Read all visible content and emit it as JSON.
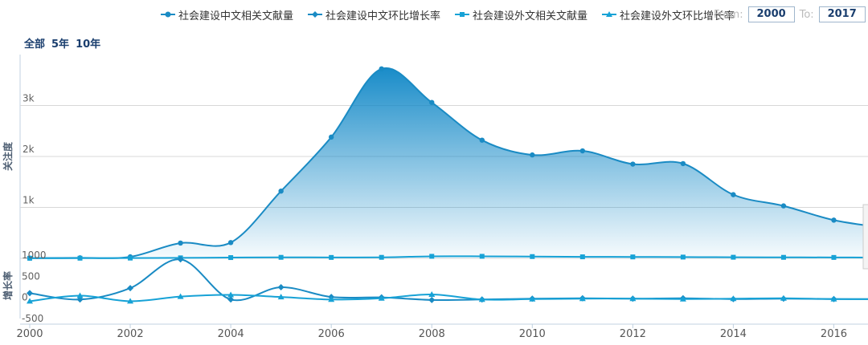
{
  "legend": {
    "items": [
      {
        "label": "社会建设中文相关文献量",
        "marker": "circle",
        "color": "#1a8bc4"
      },
      {
        "label": "社会建设中文环比增长率",
        "marker": "diamond",
        "color": "#1a8bc4"
      },
      {
        "label": "社会建设外文相关文献量",
        "marker": "square",
        "color": "#17a2d6"
      },
      {
        "label": "社会建设外文环比增长率",
        "marker": "triangle",
        "color": "#17a2d6"
      }
    ]
  },
  "range_selector": {
    "zoom_buttons": [
      "全部",
      "5年",
      "10年"
    ]
  },
  "date_range": {
    "from_label": "From:",
    "from_value": "2000",
    "to_label": "To:",
    "to_value": "2017"
  },
  "chart_data": {
    "type": "line",
    "x": [
      2000,
      2001,
      2002,
      2003,
      2004,
      2005,
      2006,
      2007,
      2008,
      2009,
      2010,
      2011,
      2012,
      2013,
      2014,
      2015,
      2016,
      2017
    ],
    "xtick_labels": [
      "2000",
      "2002",
      "2004",
      "2006",
      "2008",
      "2010",
      "2012",
      "2014",
      "2016"
    ],
    "panels": [
      {
        "ylabel": "关注度",
        "ylim": [
          0,
          4000
        ],
        "yticks": [
          "0",
          "1k",
          "2k",
          "3k"
        ],
        "grid": true,
        "series": [
          {
            "name": "社会建设中文相关文献量",
            "marker": "circle",
            "area": true,
            "color": "#1a8bc4",
            "values": [
              5,
              10,
              30,
              300,
              310,
              1320,
              2380,
              3720,
              3060,
              2320,
              2030,
              2110,
              1850,
              1860,
              1250,
              1030,
              750,
              600
            ]
          },
          {
            "name": "社会建设外文相关文献量",
            "marker": "square",
            "area": false,
            "color": "#17a2d6",
            "values": [
              2,
              3,
              5,
              10,
              15,
              20,
              18,
              20,
              40,
              40,
              35,
              30,
              28,
              25,
              22,
              20,
              18,
              15
            ]
          }
        ]
      },
      {
        "ylabel": "增长率",
        "ylim": [
          -500,
          1000
        ],
        "yticks": [
          "1000",
          "500",
          "0",
          "-500"
        ],
        "grid": false,
        "series": [
          {
            "name": "社会建设中文环比增长率",
            "marker": "diamond",
            "color": "#1a8bc4",
            "values": [
              100,
              -50,
              220,
              900,
              -50,
              240,
              10,
              0,
              -60,
              -50,
              -30,
              -20,
              -30,
              -20,
              -40,
              -30,
              -40,
              -40
            ]
          },
          {
            "name": "社会建设外文环比增长率",
            "marker": "triangle",
            "color": "#17a2d6",
            "values": [
              -90,
              40,
              -90,
              20,
              60,
              10,
              -50,
              -20,
              70,
              -50,
              -40,
              -30,
              -30,
              -40,
              -30,
              -20,
              -40,
              -40
            ]
          }
        ]
      }
    ]
  }
}
